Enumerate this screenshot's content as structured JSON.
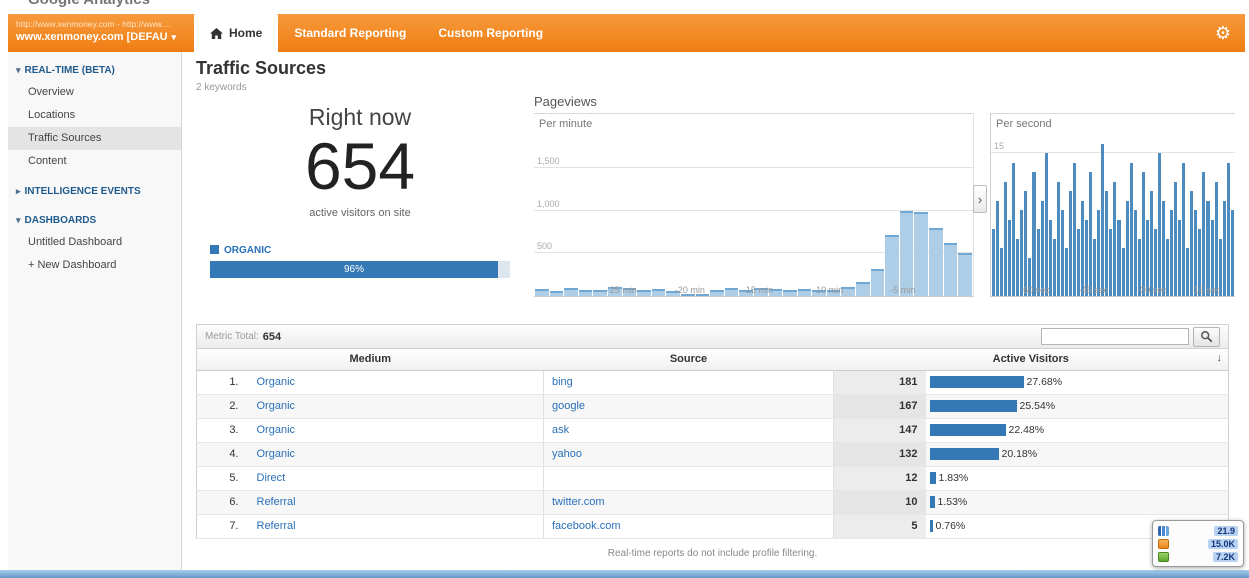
{
  "window": {
    "partial_logo": "Google Analytics"
  },
  "header": {
    "account_line1": "http://www.xenmoney.com - http://www....",
    "account_line2": "www.xenmoney.com [DEFAU...",
    "tabs": [
      {
        "label": "Home",
        "active": true,
        "icon": "home"
      },
      {
        "label": "Standard Reporting",
        "active": false
      },
      {
        "label": "Custom Reporting",
        "active": false
      }
    ]
  },
  "sidebar": {
    "sections": [
      {
        "label": "REAL-TIME (BETA)",
        "expanded": true,
        "selected": "Traffic Sources",
        "items": [
          "Overview",
          "Locations",
          "Traffic Sources",
          "Content"
        ]
      },
      {
        "label": "INTELLIGENCE EVENTS",
        "expanded": false,
        "items": []
      },
      {
        "label": "DASHBOARDS",
        "expanded": true,
        "items": [
          "Untitled Dashboard",
          "+ New Dashboard"
        ]
      }
    ]
  },
  "main": {
    "title": "Traffic Sources",
    "subtitle": "2 keywords",
    "right_now_label": "Right now",
    "active_visitors": "654",
    "active_visitors_caption": "active visitors on site",
    "legend_label": "ORGANIC",
    "legend_bar_percent": "96%",
    "legend_bar_value": 96,
    "pageviews_title": "Pageviews"
  },
  "chart_data": [
    {
      "type": "bar",
      "title": "Pageviews",
      "label": "Per minute",
      "values": [
        85,
        55,
        95,
        75,
        70,
        105,
        90,
        70,
        80,
        55,
        25,
        15,
        75,
        90,
        65,
        95,
        80,
        70,
        85,
        75,
        65,
        110,
        160,
        320,
        720,
        1000,
        980,
        800,
        620,
        500
      ],
      "x_tick_labels": [
        {
          "text": "-25 min",
          "pos": 20
        },
        {
          "text": "-20 min",
          "pos": 35.5
        },
        {
          "text": "-15 min",
          "pos": 51
        },
        {
          "text": "-10 min",
          "pos": 67
        },
        {
          "text": "-5 min",
          "pos": 84
        }
      ],
      "y_ticks": [
        {
          "label": "1,500",
          "value": 1500
        },
        {
          "label": "1,000",
          "value": 1000
        },
        {
          "label": "500",
          "value": 500
        }
      ],
      "ylim": [
        0,
        1900
      ],
      "bar_color": "#aecde6",
      "bar_top": "#6fa8d4",
      "legend_position": "none",
      "grid": true
    },
    {
      "type": "bar",
      "title": "Pageviews",
      "label": "Per second",
      "values": [
        7,
        10,
        5,
        12,
        8,
        14,
        6,
        9,
        11,
        4,
        13,
        7,
        10,
        15,
        8,
        6,
        12,
        9,
        5,
        11,
        14,
        7,
        10,
        8,
        13,
        6,
        9,
        16,
        11,
        7,
        12,
        8,
        5,
        10,
        14,
        9,
        6,
        13,
        8,
        11,
        7,
        15,
        10,
        6,
        9,
        12,
        8,
        14,
        5,
        11,
        9,
        7,
        13,
        10,
        8,
        12,
        6,
        10,
        14,
        9
      ],
      "x_tick_labels": [
        {
          "text": "-60 sec",
          "pos": 18
        },
        {
          "text": "-45 sec",
          "pos": 42
        },
        {
          "text": "-30 sec",
          "pos": 66
        },
        {
          "text": "-15 sec",
          "pos": 88
        }
      ],
      "y_ticks": [
        {
          "label": "15",
          "value": 15
        }
      ],
      "ylim": [
        0,
        17
      ],
      "bar_color": "#4e8cbf",
      "bar_top": "",
      "legend_position": "none",
      "grid": true
    }
  ],
  "table": {
    "metric_total_label": "Metric Total:",
    "metric_total_value": "654",
    "columns": {
      "medium": "Medium",
      "source": "Source",
      "active_visitors": "Active Visitors"
    },
    "sort_arrow": "↓",
    "rows": [
      {
        "rank": "1.",
        "medium": "Organic",
        "source": "bing",
        "visitors": "181",
        "percent": "27.68%",
        "pct": 27.68
      },
      {
        "rank": "2.",
        "medium": "Organic",
        "source": "google",
        "visitors": "167",
        "percent": "25.54%",
        "pct": 25.54
      },
      {
        "rank": "3.",
        "medium": "Organic",
        "source": "ask",
        "visitors": "147",
        "percent": "22.48%",
        "pct": 22.48
      },
      {
        "rank": "4.",
        "medium": "Organic",
        "source": "yahoo",
        "visitors": "132",
        "percent": "20.18%",
        "pct": 20.18
      },
      {
        "rank": "5.",
        "medium": "Direct",
        "source": "",
        "visitors": "12",
        "percent": "1.83%",
        "pct": 1.83
      },
      {
        "rank": "6.",
        "medium": "Referral",
        "source": "twitter.com",
        "visitors": "10",
        "percent": "1.53%",
        "pct": 1.53
      },
      {
        "rank": "7.",
        "medium": "Referral",
        "source": "facebook.com",
        "visitors": "5",
        "percent": "0.76%",
        "pct": 0.76
      }
    ],
    "footer_note": "Real-time reports do not include profile filtering."
  },
  "overlay": {
    "rows": [
      {
        "icon": "chart-icon",
        "value": "21.9"
      },
      {
        "icon": "orange-badge-icon",
        "value": "15.0K"
      },
      {
        "icon": "green-badge-icon",
        "value": "7.2K"
      }
    ]
  },
  "colors": {
    "accent_orange": "#f6861f",
    "link_blue": "#2a70b8",
    "bar_blue": "#3478b5"
  }
}
